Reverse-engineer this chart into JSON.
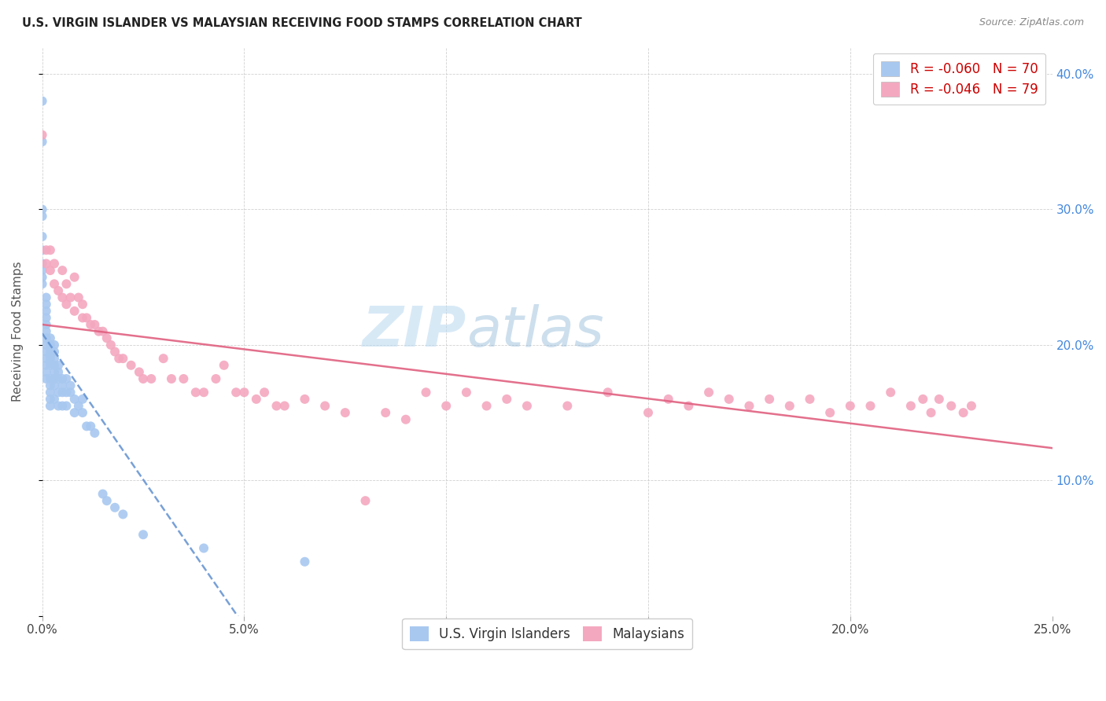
{
  "title": "U.S. VIRGIN ISLANDER VS MALAYSIAN RECEIVING FOOD STAMPS CORRELATION CHART",
  "source": "Source: ZipAtlas.com",
  "ylabel_label": "Receiving Food Stamps",
  "xlim": [
    0.0,
    0.25
  ],
  "ylim": [
    0.0,
    0.42
  ],
  "xticks": [
    0.0,
    0.05,
    0.1,
    0.15,
    0.2,
    0.25
  ],
  "yticks": [
    0.0,
    0.1,
    0.2,
    0.3,
    0.4
  ],
  "xtick_labels": [
    "0.0%",
    "5.0%",
    "10.0%",
    "15.0%",
    "20.0%",
    "25.0%"
  ],
  "ytick_labels": [
    "",
    "10.0%",
    "20.0%",
    "30.0%",
    "40.0%"
  ],
  "legend_blue_label": "R = -0.060   N = 70",
  "legend_pink_label": "R = -0.046   N = 79",
  "legend_x_label": "U.S. Virgin Islanders",
  "legend_m_label": "Malaysians",
  "blue_color": "#A8C8F0",
  "pink_color": "#F4A8C0",
  "blue_line_color": "#6090D0",
  "pink_line_color": "#E06080",
  "watermark_zip": "ZIP",
  "watermark_atlas": "atlas",
  "blue_x": [
    0.0,
    0.0,
    0.0,
    0.0,
    0.0,
    0.0,
    0.0,
    0.0,
    0.0,
    0.0,
    0.001,
    0.001,
    0.001,
    0.001,
    0.001,
    0.001,
    0.001,
    0.001,
    0.001,
    0.001,
    0.001,
    0.001,
    0.001,
    0.002,
    0.002,
    0.002,
    0.002,
    0.002,
    0.002,
    0.002,
    0.002,
    0.002,
    0.002,
    0.003,
    0.003,
    0.003,
    0.003,
    0.003,
    0.003,
    0.003,
    0.003,
    0.004,
    0.004,
    0.004,
    0.004,
    0.004,
    0.005,
    0.005,
    0.005,
    0.005,
    0.006,
    0.006,
    0.006,
    0.007,
    0.007,
    0.008,
    0.008,
    0.009,
    0.01,
    0.01,
    0.011,
    0.012,
    0.013,
    0.015,
    0.016,
    0.018,
    0.02,
    0.025,
    0.04,
    0.065
  ],
  "blue_y": [
    0.38,
    0.35,
    0.3,
    0.295,
    0.28,
    0.27,
    0.26,
    0.255,
    0.25,
    0.245,
    0.235,
    0.23,
    0.225,
    0.22,
    0.215,
    0.21,
    0.205,
    0.2,
    0.195,
    0.19,
    0.185,
    0.18,
    0.175,
    0.205,
    0.2,
    0.195,
    0.19,
    0.185,
    0.175,
    0.17,
    0.165,
    0.16,
    0.155,
    0.2,
    0.195,
    0.19,
    0.185,
    0.18,
    0.175,
    0.17,
    0.16,
    0.185,
    0.18,
    0.175,
    0.165,
    0.155,
    0.175,
    0.17,
    0.165,
    0.155,
    0.175,
    0.165,
    0.155,
    0.17,
    0.165,
    0.16,
    0.15,
    0.155,
    0.16,
    0.15,
    0.14,
    0.14,
    0.135,
    0.09,
    0.085,
    0.08,
    0.075,
    0.06,
    0.05,
    0.04
  ],
  "pink_x": [
    0.0,
    0.001,
    0.001,
    0.002,
    0.002,
    0.003,
    0.003,
    0.004,
    0.005,
    0.005,
    0.006,
    0.006,
    0.007,
    0.008,
    0.008,
    0.009,
    0.01,
    0.01,
    0.011,
    0.012,
    0.013,
    0.014,
    0.015,
    0.016,
    0.017,
    0.018,
    0.019,
    0.02,
    0.022,
    0.024,
    0.025,
    0.027,
    0.03,
    0.032,
    0.035,
    0.038,
    0.04,
    0.043,
    0.045,
    0.048,
    0.05,
    0.053,
    0.055,
    0.058,
    0.06,
    0.065,
    0.07,
    0.075,
    0.08,
    0.085,
    0.09,
    0.095,
    0.1,
    0.105,
    0.11,
    0.115,
    0.12,
    0.13,
    0.14,
    0.15,
    0.155,
    0.16,
    0.165,
    0.17,
    0.175,
    0.18,
    0.185,
    0.19,
    0.195,
    0.2,
    0.205,
    0.21,
    0.215,
    0.218,
    0.22,
    0.222,
    0.225,
    0.228,
    0.23
  ],
  "pink_y": [
    0.355,
    0.27,
    0.26,
    0.27,
    0.255,
    0.26,
    0.245,
    0.24,
    0.255,
    0.235,
    0.245,
    0.23,
    0.235,
    0.25,
    0.225,
    0.235,
    0.23,
    0.22,
    0.22,
    0.215,
    0.215,
    0.21,
    0.21,
    0.205,
    0.2,
    0.195,
    0.19,
    0.19,
    0.185,
    0.18,
    0.175,
    0.175,
    0.19,
    0.175,
    0.175,
    0.165,
    0.165,
    0.175,
    0.185,
    0.165,
    0.165,
    0.16,
    0.165,
    0.155,
    0.155,
    0.16,
    0.155,
    0.15,
    0.085,
    0.15,
    0.145,
    0.165,
    0.155,
    0.165,
    0.155,
    0.16,
    0.155,
    0.155,
    0.165,
    0.15,
    0.16,
    0.155,
    0.165,
    0.16,
    0.155,
    0.16,
    0.155,
    0.16,
    0.15,
    0.155,
    0.155,
    0.165,
    0.155,
    0.16,
    0.15,
    0.16,
    0.155,
    0.15,
    0.155
  ],
  "blue_R": -0.06,
  "blue_N": 70,
  "pink_R": -0.046,
  "pink_N": 79
}
